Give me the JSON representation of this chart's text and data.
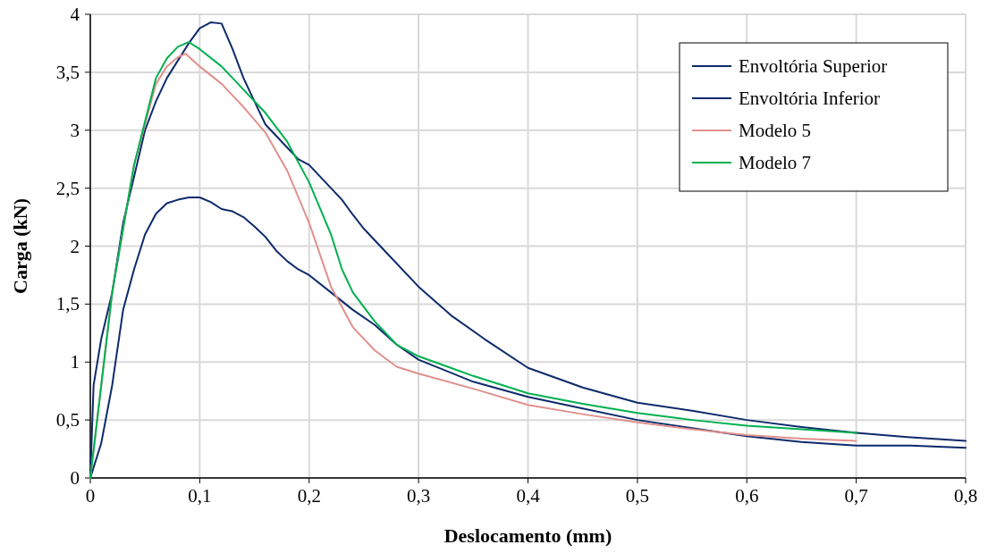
{
  "chart_data": {
    "type": "line",
    "xlabel": "Deslocamento (mm)",
    "ylabel": "Carga (kN)",
    "xlim": [
      0,
      0.8
    ],
    "ylim": [
      0,
      4
    ],
    "xticks": [
      {
        "value": 0,
        "label": "0"
      },
      {
        "value": 0.1,
        "label": "0,1"
      },
      {
        "value": 0.2,
        "label": "0,2"
      },
      {
        "value": 0.3,
        "label": "0,3"
      },
      {
        "value": 0.4,
        "label": "0,4"
      },
      {
        "value": 0.5,
        "label": "0,5"
      },
      {
        "value": 0.6,
        "label": "0,6"
      },
      {
        "value": 0.7,
        "label": "0,7"
      },
      {
        "value": 0.8,
        "label": "0,8"
      }
    ],
    "yticks": [
      {
        "value": 0,
        "label": "0"
      },
      {
        "value": 0.5,
        "label": "0,5"
      },
      {
        "value": 1,
        "label": "1"
      },
      {
        "value": 1.5,
        "label": "1,5"
      },
      {
        "value": 2,
        "label": "2"
      },
      {
        "value": 2.5,
        "label": "2,5"
      },
      {
        "value": 3,
        "label": "3"
      },
      {
        "value": 3.5,
        "label": "3,5"
      },
      {
        "value": 4,
        "label": "4"
      }
    ],
    "grid": true,
    "legend": "top right",
    "line_style": "solid",
    "series": [
      {
        "name": "Envoltória Superior",
        "color": "#0d2a6b",
        "x": [
          0,
          0.003,
          0.01,
          0.02,
          0.03,
          0.04,
          0.05,
          0.06,
          0.07,
          0.08,
          0.09,
          0.1,
          0.11,
          0.12,
          0.13,
          0.14,
          0.15,
          0.16,
          0.17,
          0.18,
          0.19,
          0.2,
          0.21,
          0.22,
          0.23,
          0.24,
          0.25,
          0.27,
          0.3,
          0.33,
          0.36,
          0.4,
          0.45,
          0.5,
          0.55,
          0.6,
          0.65,
          0.7,
          0.75,
          0.8
        ],
        "values": [
          0,
          0.8,
          1.2,
          1.6,
          2.2,
          2.6,
          3.0,
          3.25,
          3.45,
          3.6,
          3.75,
          3.88,
          3.93,
          3.92,
          3.7,
          3.45,
          3.25,
          3.05,
          2.95,
          2.85,
          2.75,
          2.7,
          2.6,
          2.5,
          2.4,
          2.27,
          2.15,
          1.95,
          1.65,
          1.4,
          1.2,
          0.95,
          0.78,
          0.65,
          0.58,
          0.5,
          0.44,
          0.39,
          0.35,
          0.32
        ]
      },
      {
        "name": "Envoltória Inferior",
        "color": "#0d2a6b",
        "x": [
          0,
          0.01,
          0.02,
          0.03,
          0.04,
          0.05,
          0.06,
          0.07,
          0.08,
          0.09,
          0.1,
          0.11,
          0.12,
          0.13,
          0.14,
          0.15,
          0.16,
          0.17,
          0.18,
          0.19,
          0.2,
          0.22,
          0.24,
          0.26,
          0.28,
          0.3,
          0.35,
          0.4,
          0.45,
          0.5,
          0.55,
          0.6,
          0.65,
          0.7,
          0.75,
          0.8
        ],
        "values": [
          0,
          0.3,
          0.8,
          1.45,
          1.8,
          2.1,
          2.28,
          2.37,
          2.4,
          2.42,
          2.42,
          2.38,
          2.32,
          2.3,
          2.25,
          2.17,
          2.08,
          1.96,
          1.87,
          1.8,
          1.75,
          1.6,
          1.45,
          1.32,
          1.15,
          1.02,
          0.83,
          0.7,
          0.6,
          0.5,
          0.43,
          0.36,
          0.31,
          0.28,
          0.28,
          0.26
        ]
      },
      {
        "name": "Modelo 5",
        "color": "#e0908c",
        "x": [
          0,
          0.02,
          0.04,
          0.06,
          0.07,
          0.08,
          0.087,
          0.1,
          0.12,
          0.14,
          0.16,
          0.18,
          0.2,
          0.22,
          0.24,
          0.26,
          0.28,
          0.3,
          0.35,
          0.4,
          0.45,
          0.5,
          0.55,
          0.6,
          0.65,
          0.7
        ],
        "values": [
          0,
          1.6,
          2.7,
          3.4,
          3.55,
          3.63,
          3.66,
          3.55,
          3.4,
          3.2,
          2.98,
          2.65,
          2.2,
          1.65,
          1.3,
          1.1,
          0.96,
          0.9,
          0.77,
          0.63,
          0.55,
          0.48,
          0.42,
          0.37,
          0.34,
          0.32
        ]
      },
      {
        "name": "Modelo 7",
        "color": "#00b050",
        "x": [
          0,
          0.02,
          0.04,
          0.06,
          0.07,
          0.08,
          0.09,
          0.1,
          0.12,
          0.14,
          0.16,
          0.18,
          0.2,
          0.22,
          0.23,
          0.24,
          0.26,
          0.28,
          0.3,
          0.35,
          0.4,
          0.45,
          0.5,
          0.55,
          0.6,
          0.65,
          0.7
        ],
        "values": [
          0,
          1.6,
          2.7,
          3.45,
          3.62,
          3.72,
          3.76,
          3.7,
          3.55,
          3.35,
          3.15,
          2.9,
          2.55,
          2.1,
          1.8,
          1.6,
          1.35,
          1.15,
          1.05,
          0.88,
          0.73,
          0.64,
          0.56,
          0.5,
          0.45,
          0.42,
          0.39
        ]
      }
    ]
  }
}
